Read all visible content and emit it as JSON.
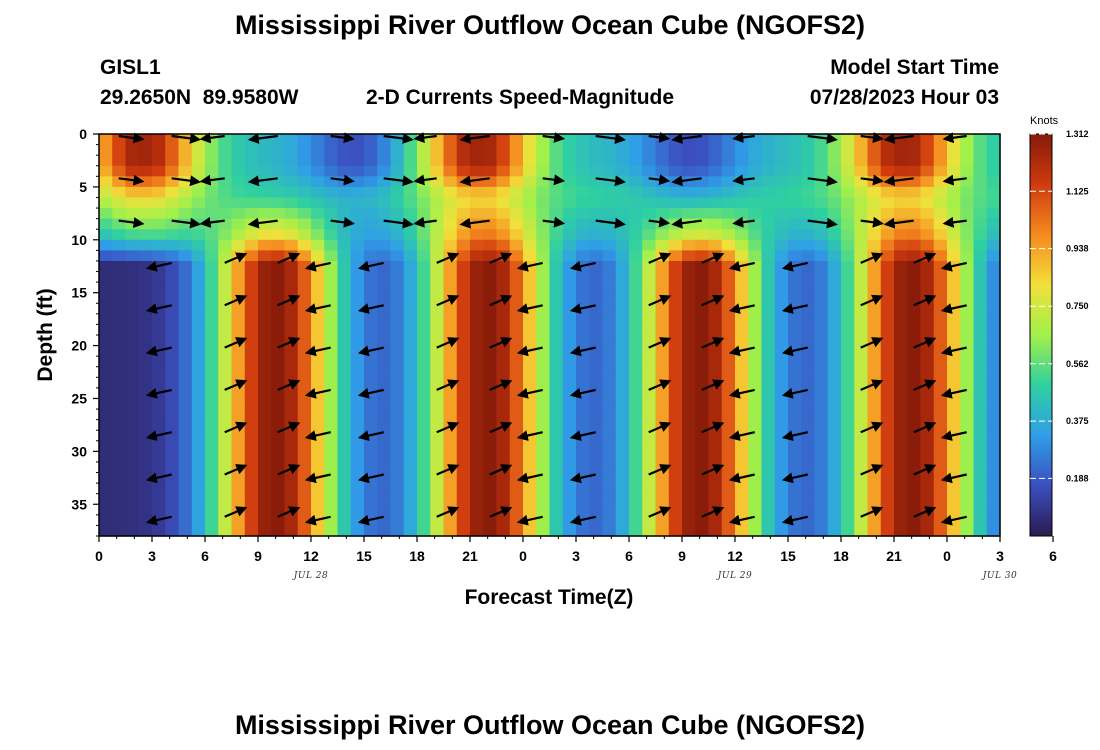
{
  "title": "Mississippi River Outflow Ocean Cube (NGOFS2)",
  "station": {
    "id": "GISL1",
    "coords": "29.2650N  89.9580W"
  },
  "subtitle": "2-D Currents Speed-Magnitude",
  "model": {
    "label": "Model Start Time",
    "value": "07/28/2023 Hour 03"
  },
  "bottom_title": "Mississippi River Outflow Ocean Cube (NGOFS2)",
  "chart_data": {
    "type": "heatmap",
    "xlabel": "Forecast Time(Z)",
    "ylabel": "Depth (ft)",
    "x_range_hours": [
      0,
      51
    ],
    "y_range": [
      0,
      38
    ],
    "y_reversed": true,
    "x_ticks": [
      "0",
      "3",
      "6",
      "9",
      "12",
      "15",
      "18",
      "21",
      "0",
      "3",
      "6",
      "9",
      "12",
      "15",
      "18",
      "21",
      "0",
      "3",
      "6"
    ],
    "y_ticks": [
      "0",
      "5",
      "10",
      "15",
      "20",
      "25",
      "30",
      "35"
    ],
    "y_tick_values": [
      0,
      5,
      10,
      15,
      20,
      25,
      30,
      35
    ],
    "date_labels": [
      {
        "text": "JUL 28",
        "x": 12
      },
      {
        "text": "JUL 29",
        "x": 36
      },
      {
        "text": "JUL 30",
        "x": 51
      }
    ],
    "colorbar": {
      "unit": "Knots",
      "min": 0,
      "max": 1.312,
      "ticks": [
        "1.312",
        "1.125",
        "0.938",
        "0.750",
        "0.562",
        "0.375",
        "0.188"
      ],
      "tick_values": [
        1.312,
        1.125,
        0.938,
        0.75,
        0.562,
        0.375,
        0.188
      ],
      "colors": [
        "#2b1a4f",
        "#3b4fbf",
        "#2f9ee8",
        "#2fd0a0",
        "#a2f04a",
        "#f2e03a",
        "#f58a1f",
        "#cf3a0f",
        "#861a08"
      ]
    },
    "surface_peaks_hours": [
      2.5,
      21.5,
      45.5
    ],
    "surface_troughs_hours": [
      14.5,
      33.5
    ],
    "deep_flood_hours": [
      10,
      22,
      34,
      46
    ],
    "deep_slack_hours": [
      2.5,
      14.5,
      28,
      39.5
    ],
    "deep_peak_speed": 1.25,
    "mid_band_depth": 8
  }
}
